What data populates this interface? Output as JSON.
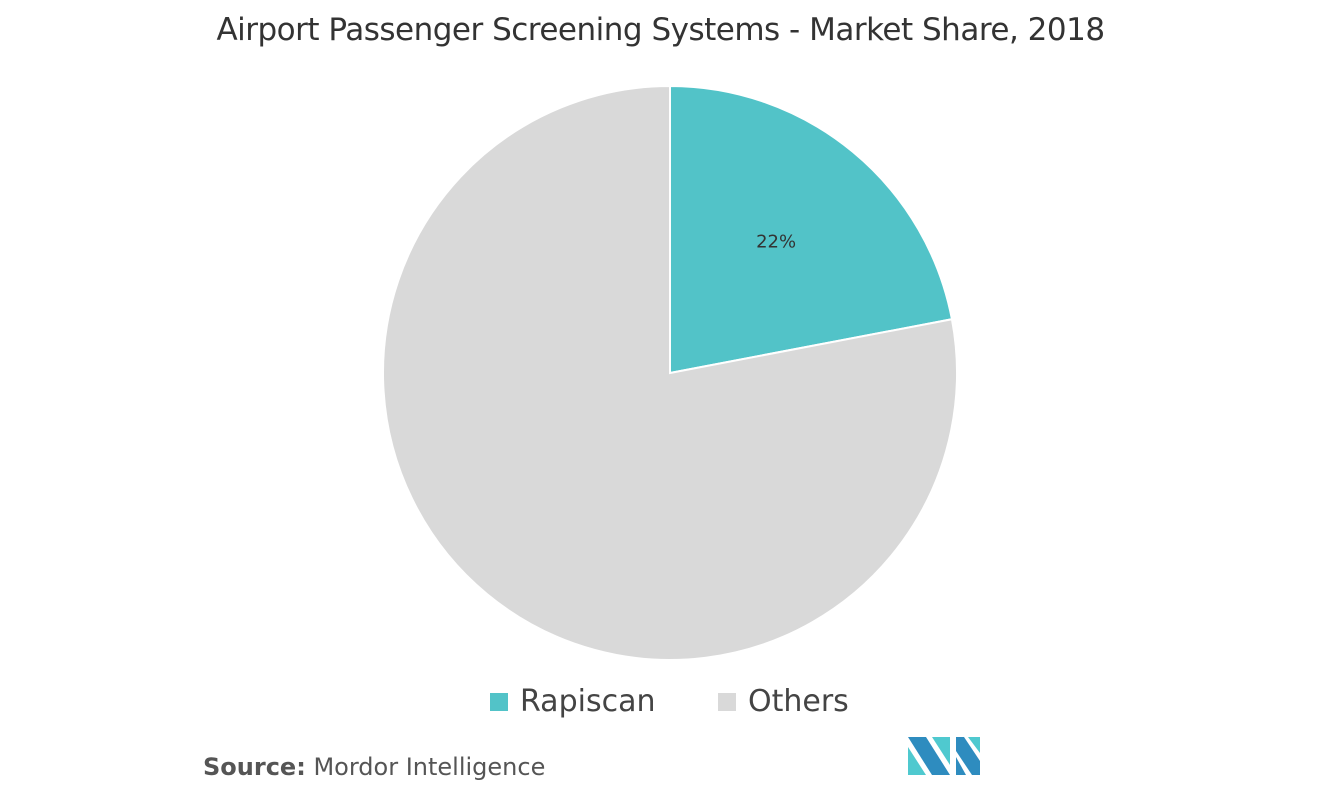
{
  "chart_data": {
    "type": "pie",
    "title": "Airport Passenger Screening Systems - Market Share, 2018",
    "slices": [
      {
        "label": "Rapiscan",
        "value": 22,
        "data_label": "22%",
        "color": "#52C3C8"
      },
      {
        "label": "Others",
        "value": 78,
        "data_label": "",
        "color": "#D9D9D9"
      }
    ],
    "legend_position": "bottom"
  },
  "source": {
    "label": "Source:",
    "text": "Mordor Intelligence"
  },
  "logo": {
    "brand": "Mordor Intelligence",
    "colors": [
      "#2E8CBF",
      "#4FC9CF"
    ]
  }
}
